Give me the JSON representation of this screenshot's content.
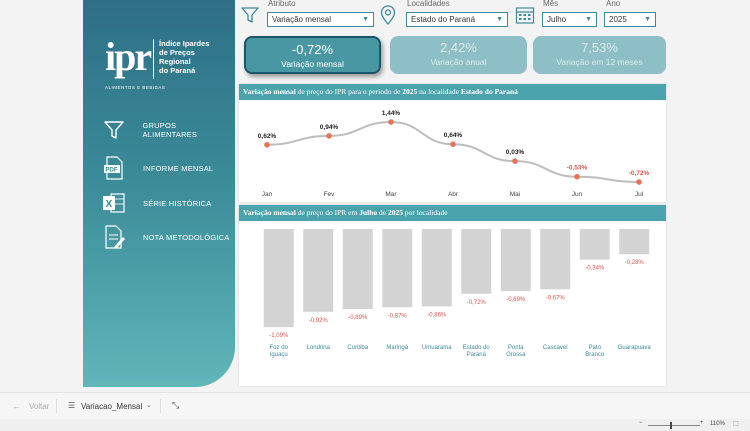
{
  "sidebar": {
    "logo": {
      "mark": "ipr",
      "lines": [
        "Índice Ipardes",
        "de Preços",
        "Regional",
        "do Paraná"
      ],
      "subtitle": "ALIMENTOS E BEBIDAS"
    },
    "nav": [
      {
        "label": "GRUPOS ALIMENTARES",
        "icon": "filter-icon"
      },
      {
        "label": "INFORME MENSAL",
        "icon": "pdf-icon"
      },
      {
        "label": "SÉRIE HISTÓRICA",
        "icon": "excel-icon"
      },
      {
        "label": "NOTA METODOLÓGICA",
        "icon": "document-icon"
      }
    ]
  },
  "filters": {
    "atributo": {
      "label": "Atributo",
      "value": "Variação mensal"
    },
    "localidades": {
      "label": "Localidades",
      "value": "Estado do Paraná"
    },
    "mes": {
      "label": "Mês",
      "value": "Julho"
    },
    "ano": {
      "label": "Ano",
      "value": "2025"
    }
  },
  "kpis": [
    {
      "value": "-0,72%",
      "label": "Variação mensal",
      "active": true
    },
    {
      "value": "2,42%",
      "label": "Variação anual",
      "active": false
    },
    {
      "value": "7,53%",
      "label": "Variação em 12 meses",
      "active": false
    }
  ],
  "line_panel": {
    "title_bold_1": "Variação mensal",
    "title_mid_1": " de preço do IPR para o período de ",
    "title_bold_2": "2025",
    "title_mid_2": " na localidade ",
    "title_bold_3": "Estado do Paraná"
  },
  "bar_panel": {
    "title_bold_1": "Variação mensal",
    "title_mid_1": " de preço do IPR em ",
    "title_bold_2": "Julho",
    "title_mid_2": " de ",
    "title_bold_3": "2025",
    "title_end": " por localidade"
  },
  "chart_data": [
    {
      "type": "line",
      "categories": [
        "Jan",
        "Fev",
        "Mar",
        "Abr",
        "Mai",
        "Jun",
        "Jul"
      ],
      "values": [
        0.62,
        0.94,
        1.44,
        0.64,
        0.03,
        -0.53,
        -0.72
      ],
      "labels": [
        "0,62%",
        "0,94%",
        "1,44%",
        "0,64%",
        "0,03%",
        "-0,53%",
        "-0,72%"
      ],
      "colors": {
        "line": "#bdbdbd",
        "marker": "#e8735a",
        "positive_label": "#222222",
        "negative_label": "#d9534f"
      }
    },
    {
      "type": "bar",
      "categories": [
        "Foz do Iguaçu",
        "Londrina",
        "Curitiba",
        "Maringá",
        "Umuarama",
        "Estado do Paraná",
        "Ponta Grossa",
        "Cascavel",
        "Pato Branco",
        "Guarapuava"
      ],
      "values": [
        -1.09,
        -0.92,
        -0.89,
        -0.87,
        -0.86,
        -0.72,
        -0.69,
        -0.67,
        -0.34,
        -0.28
      ],
      "labels": [
        "-1,09%",
        "-0,92%",
        "-0,89%",
        "-0,87%",
        "-0,86%",
        "-0,72%",
        "-0,69%",
        "-0,67%",
        "-0,34%",
        "-0,28%"
      ],
      "colors": {
        "bar": "#d3d3d3",
        "label": "#d9534f",
        "category": "#3a8a98"
      }
    }
  ],
  "bottombar": {
    "back": "Voltar",
    "page": "Variacao_Mensal",
    "zoom": "110%"
  }
}
